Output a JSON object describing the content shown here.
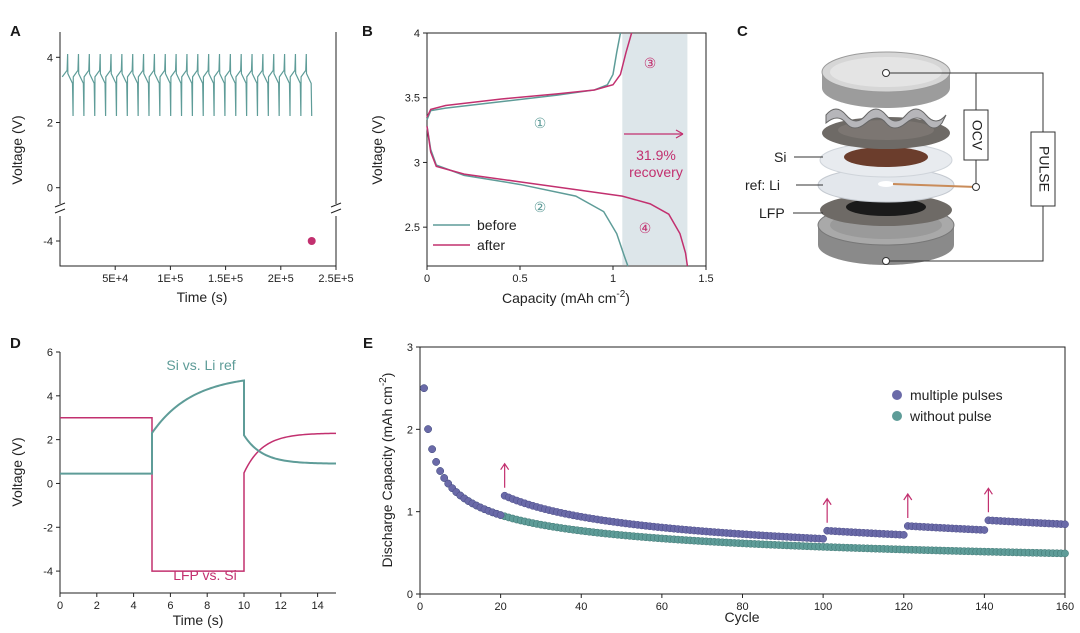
{
  "colors": {
    "teal": "#5e9c98",
    "magenta": "#c2306f",
    "purple": "#6a6aa8",
    "shade": "#dde6ea"
  },
  "chart_data": [
    {
      "panel": "A",
      "type": "line",
      "xlabel": "Time (s)",
      "ylabel": "Voltage (V)",
      "xlim": [
        0,
        250000
      ],
      "ylim_upper": [
        -0.5,
        4.5
      ],
      "ylim_lower": [
        -5,
        -3
      ],
      "xticks": [
        "5E+4",
        "1E+5",
        "1.5E+5",
        "2E+5",
        "2.5E+5"
      ],
      "xtick_values": [
        50000,
        100000,
        150000,
        200000,
        250000
      ],
      "yticks": [
        "4",
        "2",
        "0",
        "-4"
      ],
      "ytick_values": [
        4,
        2,
        0,
        -4
      ],
      "cycling": {
        "count": 23,
        "t_start": 2000,
        "t_end": 228000,
        "v_min": 2.2,
        "v_max": 4.1,
        "v_plateau_low": 3.4,
        "v_plateau_high": 3.6
      },
      "point": {
        "x": 228000,
        "y": -4
      },
      "axis_break": true
    },
    {
      "panel": "B",
      "type": "line",
      "xlabel": "Capacity (mAh cm",
      "xlabel_sup": "-2",
      "xlabel_end": ")",
      "ylabel": "Voltage (V)",
      "xlim": [
        0,
        1.5
      ],
      "ylim": [
        2.2,
        4.0
      ],
      "xticks": [
        "0",
        "0.5",
        "1",
        "1.5"
      ],
      "xtick_values": [
        0,
        0.5,
        1,
        1.5
      ],
      "yticks": [
        "2.5",
        "3",
        "3.5",
        "4"
      ],
      "ytick_values": [
        2.5,
        3,
        3.5,
        4
      ],
      "series": [
        {
          "name": "before",
          "color": "#5e9c98",
          "charge": [
            [
              0,
              3.33
            ],
            [
              0.02,
              3.4
            ],
            [
              0.1,
              3.42
            ],
            [
              0.4,
              3.47
            ],
            [
              0.7,
              3.52
            ],
            [
              0.9,
              3.56
            ],
            [
              0.97,
              3.6
            ],
            [
              1.0,
              3.68
            ],
            [
              1.02,
              3.85
            ],
            [
              1.04,
              4.0
            ]
          ],
          "discharge": [
            [
              0,
              3.28
            ],
            [
              0.02,
              3.1
            ],
            [
              0.05,
              2.98
            ],
            [
              0.2,
              2.9
            ],
            [
              0.5,
              2.83
            ],
            [
              0.8,
              2.74
            ],
            [
              0.95,
              2.62
            ],
            [
              1.02,
              2.45
            ],
            [
              1.06,
              2.28
            ],
            [
              1.08,
              2.2
            ]
          ]
        },
        {
          "name": "after",
          "color": "#c2306f",
          "charge": [
            [
              0,
              3.35
            ],
            [
              0.02,
              3.41
            ],
            [
              0.1,
              3.44
            ],
            [
              0.4,
              3.49
            ],
            [
              0.7,
              3.53
            ],
            [
              0.9,
              3.56
            ],
            [
              1.0,
              3.6
            ],
            [
              1.04,
              3.68
            ],
            [
              1.07,
              3.85
            ],
            [
              1.1,
              4.0
            ]
          ],
          "discharge": [
            [
              0,
              3.28
            ],
            [
              0.02,
              3.08
            ],
            [
              0.05,
              2.97
            ],
            [
              0.2,
              2.91
            ],
            [
              0.5,
              2.85
            ],
            [
              0.8,
              2.79
            ],
            [
              1.05,
              2.74
            ],
            [
              1.2,
              2.68
            ],
            [
              1.3,
              2.6
            ],
            [
              1.36,
              2.45
            ],
            [
              1.39,
              2.3
            ],
            [
              1.4,
              2.2
            ]
          ]
        }
      ],
      "shaded_range": [
        1.05,
        1.4
      ],
      "markers": [
        "①",
        "②",
        "③",
        "④"
      ],
      "annotation": [
        "31.9%",
        "recovery"
      ]
    },
    {
      "panel": "D",
      "type": "line",
      "xlabel": "Time (s)",
      "ylabel": "Voltage (V)",
      "xlim": [
        0,
        15
      ],
      "ylim": [
        -5,
        6
      ],
      "xticks": [
        "0",
        "2",
        "4",
        "6",
        "8",
        "10",
        "12",
        "14"
      ],
      "xtick_values": [
        0,
        2,
        4,
        6,
        8,
        10,
        12,
        14
      ],
      "yticks": [
        "6",
        "4",
        "2",
        "0",
        "-2",
        "-4"
      ],
      "ytick_values": [
        6,
        4,
        2,
        0,
        -2,
        -4
      ],
      "series": [
        {
          "name": "Si vs. Li ref",
          "color": "#5e9c98"
        },
        {
          "name": "LFP vs. Si",
          "color": "#c2306f"
        }
      ],
      "si_vs_li": {
        "rest": 0.45,
        "pulse_start": 5,
        "pulse_end": 10,
        "pulse_v0": 2.3,
        "pulse_v1": 4.7,
        "relax_end": 0.9
      },
      "lfp_vs_si": {
        "rest": 3.0,
        "pulse_v": -4.0,
        "recover_start": 1.6,
        "recover_end": 2.3
      }
    },
    {
      "panel": "E",
      "type": "scatter",
      "xlabel": "Cycle",
      "ylabel": "Discharge Capacity (mAh cm",
      "ylabel_sup": "-2",
      "ylabel_end": ")",
      "xlim": [
        0,
        160
      ],
      "ylim": [
        0,
        3
      ],
      "xticks": [
        "0",
        "20",
        "40",
        "60",
        "80",
        "100",
        "120",
        "140",
        "160"
      ],
      "xtick_values": [
        0,
        20,
        40,
        60,
        80,
        100,
        120,
        140,
        160
      ],
      "yticks": [
        "0",
        "1",
        "2",
        "3"
      ],
      "ytick_values": [
        0,
        1,
        2,
        3
      ],
      "series": [
        {
          "name": "multiple pulses",
          "color": "#6a6aa8"
        },
        {
          "name": "without pulse",
          "color": "#5e9c98"
        }
      ],
      "pulse_cycles": [
        20,
        100,
        120,
        140
      ],
      "capacity_model": {
        "c0": 2.5,
        "exponent": 0.32,
        "pulse_boost": [
          0.25,
          0.1,
          0.11,
          0.12
        ]
      }
    }
  ],
  "panel_C": {
    "title": "C",
    "labels": {
      "si": "Si",
      "ref": "ref: Li",
      "lfp": "LFP",
      "ocv": "OCV",
      "pulse": "PULSE"
    }
  }
}
